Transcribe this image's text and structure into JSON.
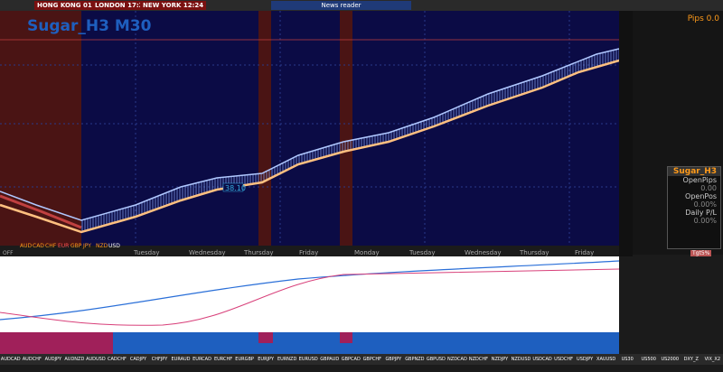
{
  "header": {
    "clocks": [
      "HONG KONG 01:24",
      "LONDON 17:24",
      "NEW YORK 12:24"
    ],
    "news": "News reader"
  },
  "chart": {
    "title": "Sugar_H3 M30",
    "price_tag": "38.10",
    "days": [
      "Tuesday",
      "Wednesday",
      "Thursday",
      "Friday",
      "Monday",
      "Tuesday",
      "Wednesday",
      "Thursday",
      "Friday"
    ],
    "currencies": [
      "AUD",
      "CAD",
      "CHF",
      "EUR",
      "GBP",
      "JPY",
      "NZD",
      "USD"
    ],
    "off": "OFF"
  },
  "panel": {
    "pips": "Pips 0.0",
    "title": "Sugar_H3",
    "rows": [
      "OpenPips",
      "0.00",
      "OpenPos",
      "0.00%",
      "Daily P/L",
      "0.00%"
    ],
    "target": "Tgt5%"
  },
  "tabs": [
    "AUDCAD",
    "AUDCHF",
    "AUDJPY",
    "AUDNZD",
    "AUDUSD",
    "CADCHF",
    "CADJPY",
    "CHFJPY",
    "EURAUD",
    "EURCAD",
    "EURCHF",
    "EURGBP",
    "EURJPY",
    "EURNZD",
    "EURUSD",
    "GBPAUD",
    "GBPCAD",
    "GBPCHF",
    "GBPJPY",
    "GBPNZD",
    "GBPUSD",
    "NZDCAD",
    "NZDCHF",
    "NZDJPY",
    "NZDUSD",
    "USDCAD",
    "USDCHF",
    "USDJPY",
    "XAUUSD",
    "US30",
    "US500",
    "US2000",
    "DXY_Z",
    "VIX_X2"
  ]
}
